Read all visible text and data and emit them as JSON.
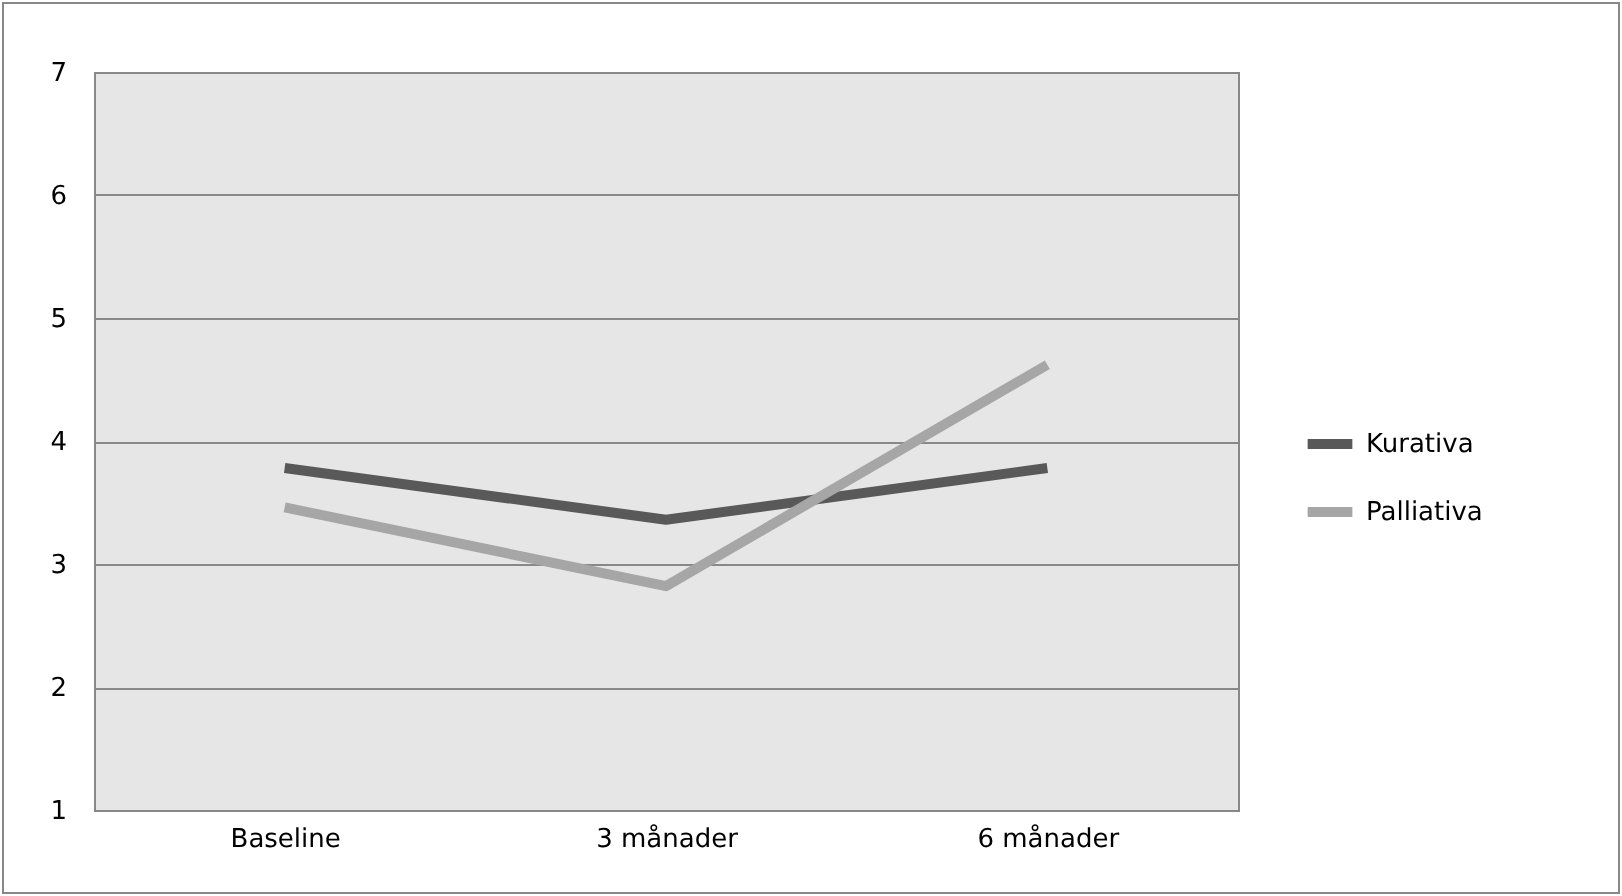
{
  "chart_data": {
    "type": "line",
    "categories": [
      "Baseline",
      "3 månader",
      "6 månader"
    ],
    "series": [
      {
        "name": "Kurativa",
        "color": "#595959",
        "values": [
          3.78,
          3.36,
          3.78
        ]
      },
      {
        "name": "Palliativa",
        "color": "#a6a6a6",
        "values": [
          3.46,
          2.82,
          4.62
        ]
      }
    ],
    "ylim": [
      1,
      7
    ],
    "yticks": [
      1,
      2,
      3,
      4,
      5,
      6,
      7
    ],
    "grid": "y",
    "legend": "right",
    "marker": "none",
    "line_style": "solid"
  }
}
